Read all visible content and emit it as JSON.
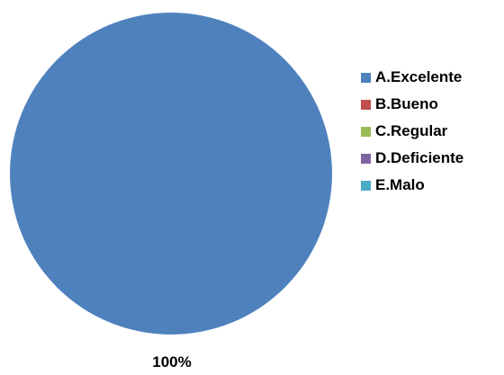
{
  "chart_data": {
    "type": "pie",
    "title": "",
    "categories": [
      "A.Excelente",
      "B.Bueno",
      "C.Regular",
      "D.Deficiente",
      "E.Malo"
    ],
    "values": [
      100,
      0,
      0,
      0,
      0
    ],
    "colors": [
      "#4f81bd",
      "#c0504d",
      "#9bbb59",
      "#8064a2",
      "#4bacc6"
    ],
    "data_labels": [
      "100%"
    ],
    "legend_position": "right"
  }
}
